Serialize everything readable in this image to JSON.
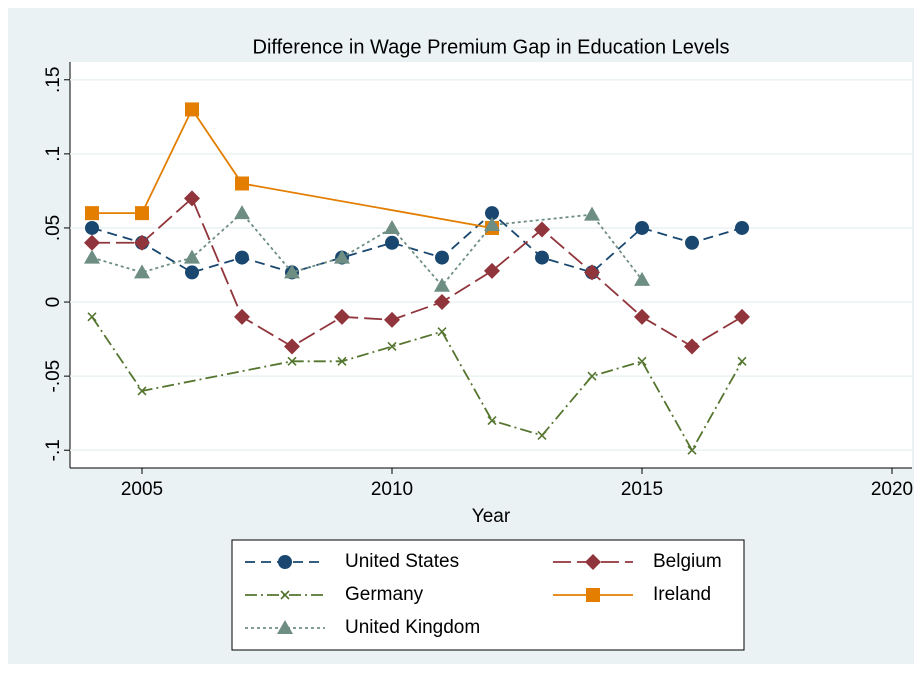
{
  "chart_data": {
    "type": "line",
    "title": "Difference in Wage Premium Gap in Education Levels",
    "x_label": "Year",
    "xlim": [
      2003.56,
      2020.4
    ],
    "xticks": [
      2005,
      2010,
      2015,
      2020
    ],
    "ylim": [
      -0.112,
      0.162
    ],
    "yticks": [
      {
        "value": -0.1,
        "label": "-.1"
      },
      {
        "value": -0.05,
        "label": "-.05"
      },
      0,
      {
        "value": 0.05,
        "label": ".05"
      },
      {
        "value": 0.1,
        "label": ".1"
      },
      {
        "value": 0.15,
        "label": ".15"
      }
    ],
    "grid": true,
    "series": [
      {
        "name": "United States",
        "color": "#1a476f",
        "marker": "circle",
        "dash": "10,6",
        "x": [
          2004,
          2005,
          2006,
          2007,
          2008,
          2009,
          2010,
          2011,
          2012,
          2013,
          2014,
          2015,
          2016,
          2017
        ],
        "values": [
          0.05,
          0.04,
          0.02,
          0.03,
          0.02,
          0.03,
          0.04,
          0.03,
          0.06,
          0.03,
          0.02,
          0.05,
          0.04,
          0.05
        ]
      },
      {
        "name": "Belgium",
        "color": "#90353b",
        "marker": "diamond",
        "dash": "18,6",
        "x": [
          2004,
          2005,
          2006,
          2007,
          2008,
          2009,
          2010,
          2011,
          2012,
          2013,
          2014,
          2015,
          2016,
          2017
        ],
        "values": [
          0.04,
          0.04,
          0.07,
          -0.01,
          -0.03,
          -0.01,
          -0.012,
          0,
          0.021,
          0.049,
          0.02,
          -0.01,
          -0.03,
          -0.01
        ]
      },
      {
        "name": "Germany",
        "color": "#55752f",
        "marker": "x",
        "dash": "12,4,2,4",
        "x": [
          2004,
          2005,
          2008,
          2009,
          2010,
          2011,
          2012,
          2013,
          2014,
          2015,
          2016,
          2017
        ],
        "values": [
          -0.01,
          -0.06,
          -0.04,
          -0.04,
          -0.03,
          -0.02,
          -0.08,
          -0.09,
          -0.05,
          -0.04,
          -0.1,
          -0.04
        ]
      },
      {
        "name": "Ireland",
        "color": "#e37e00",
        "marker": "square",
        "dash": "none",
        "x": [
          2004,
          2005,
          2006,
          2007,
          2012
        ],
        "values": [
          0.06,
          0.06,
          0.13,
          0.08,
          0.05
        ]
      },
      {
        "name": "United Kingdom",
        "color": "#6e8e84",
        "marker": "triangle",
        "dash": "3,3",
        "x": [
          2004,
          2005,
          2006,
          2007,
          2008,
          2009,
          2010,
          2011,
          2012,
          2014,
          2015
        ],
        "values": [
          0.03,
          0.02,
          0.03,
          0.06,
          0.02,
          0.03,
          0.05,
          0.011,
          0.052,
          0.059,
          0.015
        ]
      }
    ]
  }
}
